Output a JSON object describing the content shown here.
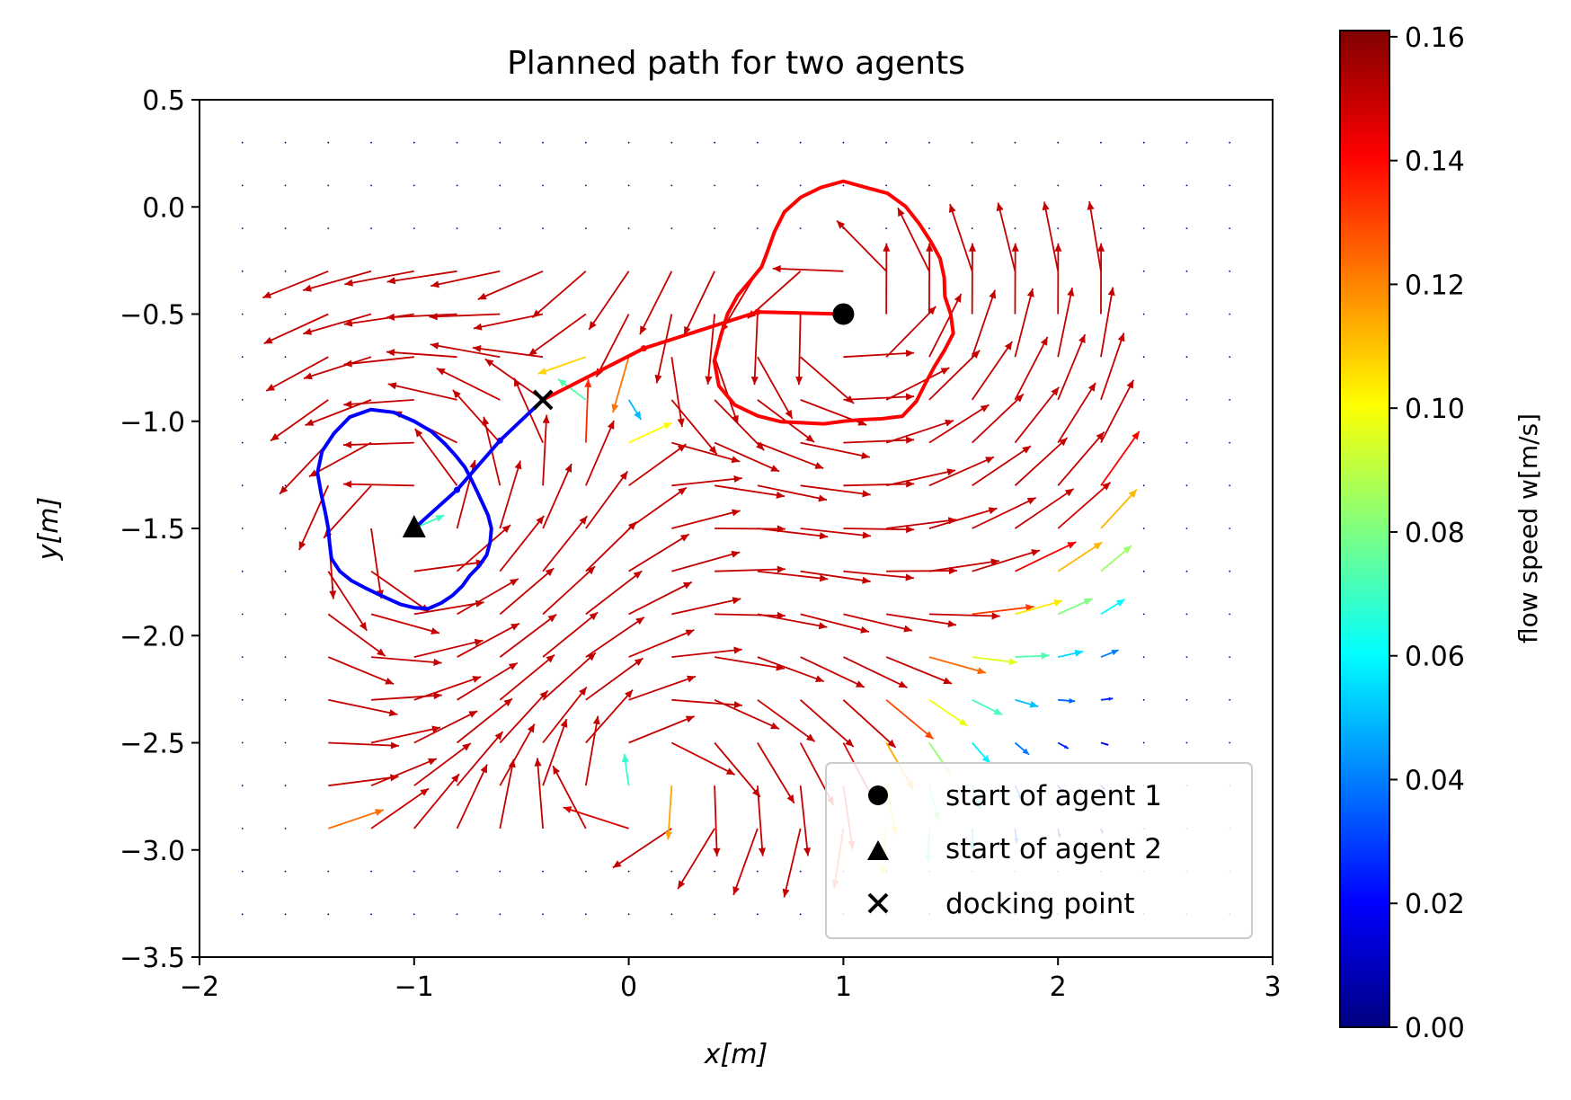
{
  "chart_data": {
    "type": "quiver",
    "title": "Planned path for two agents",
    "xlabel": "x[m]",
    "ylabel": "y[m]",
    "xlim": [
      -2,
      3
    ],
    "ylim": [
      -3.5,
      0.5
    ],
    "xticks": [
      -2,
      -1,
      0,
      1,
      2,
      3
    ],
    "xtick_labels": [
      "−2",
      "−1",
      "0",
      "1",
      "2",
      "3"
    ],
    "yticks": [
      0.5,
      0.0,
      -0.5,
      -1.0,
      -1.5,
      -2.0,
      -2.5,
      -3.0,
      -3.5
    ],
    "ytick_labels": [
      "0.5",
      "0.0",
      "−0.5",
      "−1.0",
      "−1.5",
      "−2.0",
      "−2.5",
      "−3.0",
      "−3.5"
    ],
    "colorbar": {
      "label": "flow speed w[m/s]",
      "colormap": "jet",
      "range": [
        0.0,
        0.161
      ],
      "ticks": [
        0.0,
        0.02,
        0.04,
        0.06,
        0.08,
        0.1,
        0.12,
        0.14,
        0.16
      ],
      "tick_labels": [
        "0.00",
        "0.02",
        "0.04",
        "0.06",
        "0.08",
        "0.10",
        "0.12",
        "0.14",
        "0.16"
      ]
    },
    "vector_field": {
      "description": "flow field sampled on a 0.2 m grid from x=-1.8 to 2.8 and y=0.3 to -3.3",
      "grid_x": [
        -1.8,
        2.8,
        0.2
      ],
      "grid_y": [
        -3.3,
        0.3,
        0.2
      ],
      "vortex_centers": [
        [
          -1.0,
          -1.5
        ],
        [
          1.0,
          -0.5
        ]
      ]
    },
    "series": [
      {
        "name": "agent 1 path",
        "color": "#ff0000",
        "x": [
          1.0,
          0.6,
          0.07,
          -0.4
        ],
        "y": [
          -0.5,
          -0.49,
          -0.66,
          -0.9
        ]
      },
      {
        "name": "agent 2 path",
        "color": "#0000ff",
        "x": [
          -1.0,
          -0.8,
          -0.6,
          -0.4
        ],
        "y": [
          -1.5,
          -1.32,
          -1.09,
          -0.9
        ]
      },
      {
        "name": "agent 1 reachable boundary",
        "color": "#ff0000",
        "center": [
          1.0,
          -0.5
        ],
        "radii": [
          0.5,
          0.48,
          0.5,
          0.52,
          0.53,
          0.55,
          0.58,
          0.6,
          0.6,
          0.62,
          0.6,
          0.58,
          0.55,
          0.5,
          0.46,
          0.44,
          0.46,
          0.5,
          0.54,
          0.58,
          0.64,
          0.67,
          0.66,
          0.62,
          0.58,
          0.54,
          0.52,
          0.5,
          0.5,
          0.52,
          0.55,
          0.53,
          0.5,
          0.49,
          0.5,
          0.52
        ]
      },
      {
        "name": "agent 2 reachable boundary",
        "color": "#0000ff",
        "center": [
          -1.0,
          -1.5
        ],
        "radii": [
          0.36,
          0.35,
          0.34,
          0.34,
          0.35,
          0.37,
          0.39,
          0.42,
          0.46,
          0.5,
          0.55,
          0.59,
          0.6,
          0.58,
          0.56,
          0.52,
          0.46,
          0.42,
          0.4,
          0.4,
          0.41,
          0.4,
          0.38,
          0.36,
          0.35,
          0.35,
          0.36,
          0.37,
          0.38,
          0.37,
          0.36,
          0.35,
          0.34,
          0.35,
          0.36,
          0.36
        ]
      }
    ],
    "markers": [
      {
        "label": "start of agent 1",
        "shape": "circle",
        "x": 1.0,
        "y": -0.5
      },
      {
        "label": "start of agent 2",
        "shape": "triangle",
        "x": -1.0,
        "y": -1.5
      },
      {
        "label": "docking point",
        "shape": "x",
        "x": -0.4,
        "y": -0.9
      }
    ],
    "legend": {
      "position": "lower right",
      "entries": [
        "start of agent 1",
        "start of agent 2",
        "docking point"
      ]
    }
  }
}
